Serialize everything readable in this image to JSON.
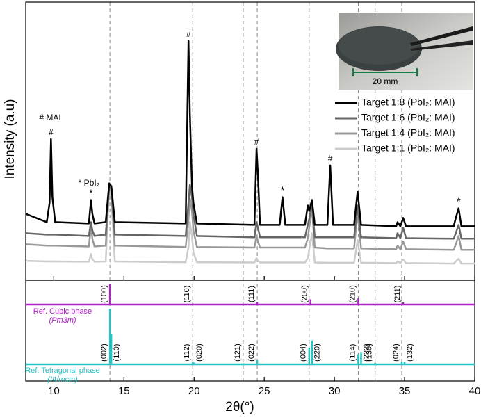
{
  "chart_data": [
    {
      "type": "line",
      "ylabel": "Intensity (a.u)",
      "xlim": [
        8,
        40
      ],
      "ylim": [
        0,
        100
      ],
      "legend": "upper right",
      "inset_label": "20 mm",
      "annotations": [
        "# MAI",
        "* PbI₂"
      ],
      "markers": [
        {
          "symbol": "#",
          "x": 9.8
        },
        {
          "symbol": "#",
          "x": 19.6
        },
        {
          "symbol": "#",
          "x": 24.45
        },
        {
          "symbol": "#",
          "x": 29.7
        },
        {
          "symbol": "*",
          "x": 12.65
        },
        {
          "symbol": "*",
          "x": 26.3
        },
        {
          "symbol": "*",
          "x": 38.85
        }
      ],
      "x": [
        8,
        9.5,
        9.7,
        9.8,
        9.9,
        10.1,
        12.5,
        12.65,
        12.75,
        12.9,
        13.7,
        13.95,
        14.1,
        14.35,
        19.4,
        19.6,
        19.7,
        19.85,
        19.95,
        20.2,
        24.3,
        24.45,
        24.55,
        24.7,
        26.1,
        26.3,
        26.5,
        27.9,
        28.1,
        28.2,
        28.4,
        28.6,
        29.5,
        29.7,
        29.9,
        31.4,
        31.65,
        31.9,
        34.4,
        34.5,
        34.7,
        34.9,
        35.1,
        38.5,
        38.65,
        38.85,
        39.05,
        40
      ],
      "series": [
        {
          "name": "Target 1:8 (PbI₂: MAI)",
          "color": "#000000",
          "values": [
            24,
            21,
            28,
            51,
            30,
            21,
            20.5,
            29,
            24,
            20.5,
            21,
            35,
            34,
            21,
            20.5,
            86.5,
            60,
            34,
            28,
            20.5,
            20,
            47.5,
            38,
            20,
            20,
            30,
            20,
            20,
            27,
            25,
            29,
            20,
            20,
            41.5,
            20,
            20,
            32,
            20,
            19.5,
            21,
            19.5,
            22.5,
            19.5,
            19.5,
            22.5,
            26,
            19.5,
            19.5
          ]
        },
        {
          "name": "Target 1:6 (PbI₂: MAI)",
          "color": "#666666",
          "values": [
            17,
            16.5,
            16.5,
            16.5,
            16.5,
            16.5,
            16,
            21,
            18,
            16,
            16.5,
            34,
            33,
            16.5,
            16,
            28,
            34.5,
            30,
            24,
            16,
            15.5,
            21,
            19,
            15.5,
            15.5,
            15.5,
            15.5,
            15.5,
            20,
            22,
            28,
            15.5,
            15.5,
            15.5,
            15.5,
            15.5,
            27,
            15.5,
            15.2,
            17,
            15.2,
            19,
            15.2,
            15,
            17,
            20,
            15,
            15
          ]
        },
        {
          "name": "Target 1:4 (PbI₂: MAI)",
          "color": "#999999",
          "values": [
            13,
            12.5,
            12.5,
            12.5,
            12.5,
            12.5,
            12.2,
            19.5,
            15,
            12.2,
            12.5,
            34,
            32,
            12.5,
            12,
            22,
            29.5,
            25,
            18,
            12,
            11.8,
            16,
            14,
            11.8,
            11.8,
            11.8,
            11.8,
            11.8,
            15,
            19,
            26,
            11.8,
            11.5,
            11.5,
            11.5,
            11.5,
            24.5,
            11.5,
            11.2,
            12.5,
            11.2,
            14,
            11.2,
            11,
            13,
            16,
            11,
            11
          ]
        },
        {
          "name": "Target 1:1 (PbI₂: MAI)",
          "color": "#cccccc",
          "values": [
            7,
            6.8,
            6.8,
            6.8,
            6.8,
            6.8,
            6.7,
            9.5,
            7.5,
            6.7,
            6.8,
            33,
            30,
            6.8,
            6.5,
            12,
            21,
            16,
            10,
            6.5,
            6.4,
            8,
            7,
            6.4,
            6.4,
            6.4,
            6.4,
            6.4,
            8,
            11,
            17,
            6.4,
            6.3,
            6.3,
            6.3,
            6.3,
            14.5,
            6.3,
            6.2,
            6.8,
            6.2,
            7.5,
            6.2,
            6,
            6.8,
            7.75,
            6,
            6
          ]
        }
      ]
    },
    {
      "type": "stick",
      "title": "Ref. Cubic phase",
      "subtitle": "(Pm3m)",
      "color": "#b020c8",
      "xlim": [
        8,
        40
      ],
      "ylim": [
        0,
        100
      ],
      "x": [
        14.0,
        19.9,
        24.5,
        28.3,
        31.7,
        34.9
      ],
      "values": [
        100,
        5,
        12,
        25,
        30,
        10
      ],
      "labels": [
        "(100)",
        "(110)",
        "(111)",
        "(200)",
        "(210)",
        "(211)"
      ]
    },
    {
      "type": "stick",
      "title": "Ref. Tetragonal phase",
      "subtitle": "(I4/mcm)",
      "color": "#22c4c4",
      "xlim": [
        8,
        40
      ],
      "ylim": [
        0,
        100
      ],
      "xlabel": "2θ(°)",
      "xticks": [
        10,
        15,
        20,
        25,
        30,
        35,
        40
      ],
      "x": [
        14.0,
        14.1,
        19.9,
        20.0,
        23.5,
        24.5,
        28.2,
        28.4,
        31.7,
        31.9,
        32.9,
        34.8,
        35.0
      ],
      "values": [
        100,
        55,
        4,
        3,
        2,
        8,
        30,
        43,
        18,
        22,
        3,
        4,
        4
      ],
      "labels": [
        "(002)",
        "(110)",
        "(112)",
        "(020)",
        "(121)",
        "(022)",
        "(004)",
        "(220)",
        "(114)",
        "(222)",
        "(130)",
        "(024)",
        "(132)"
      ]
    }
  ]
}
